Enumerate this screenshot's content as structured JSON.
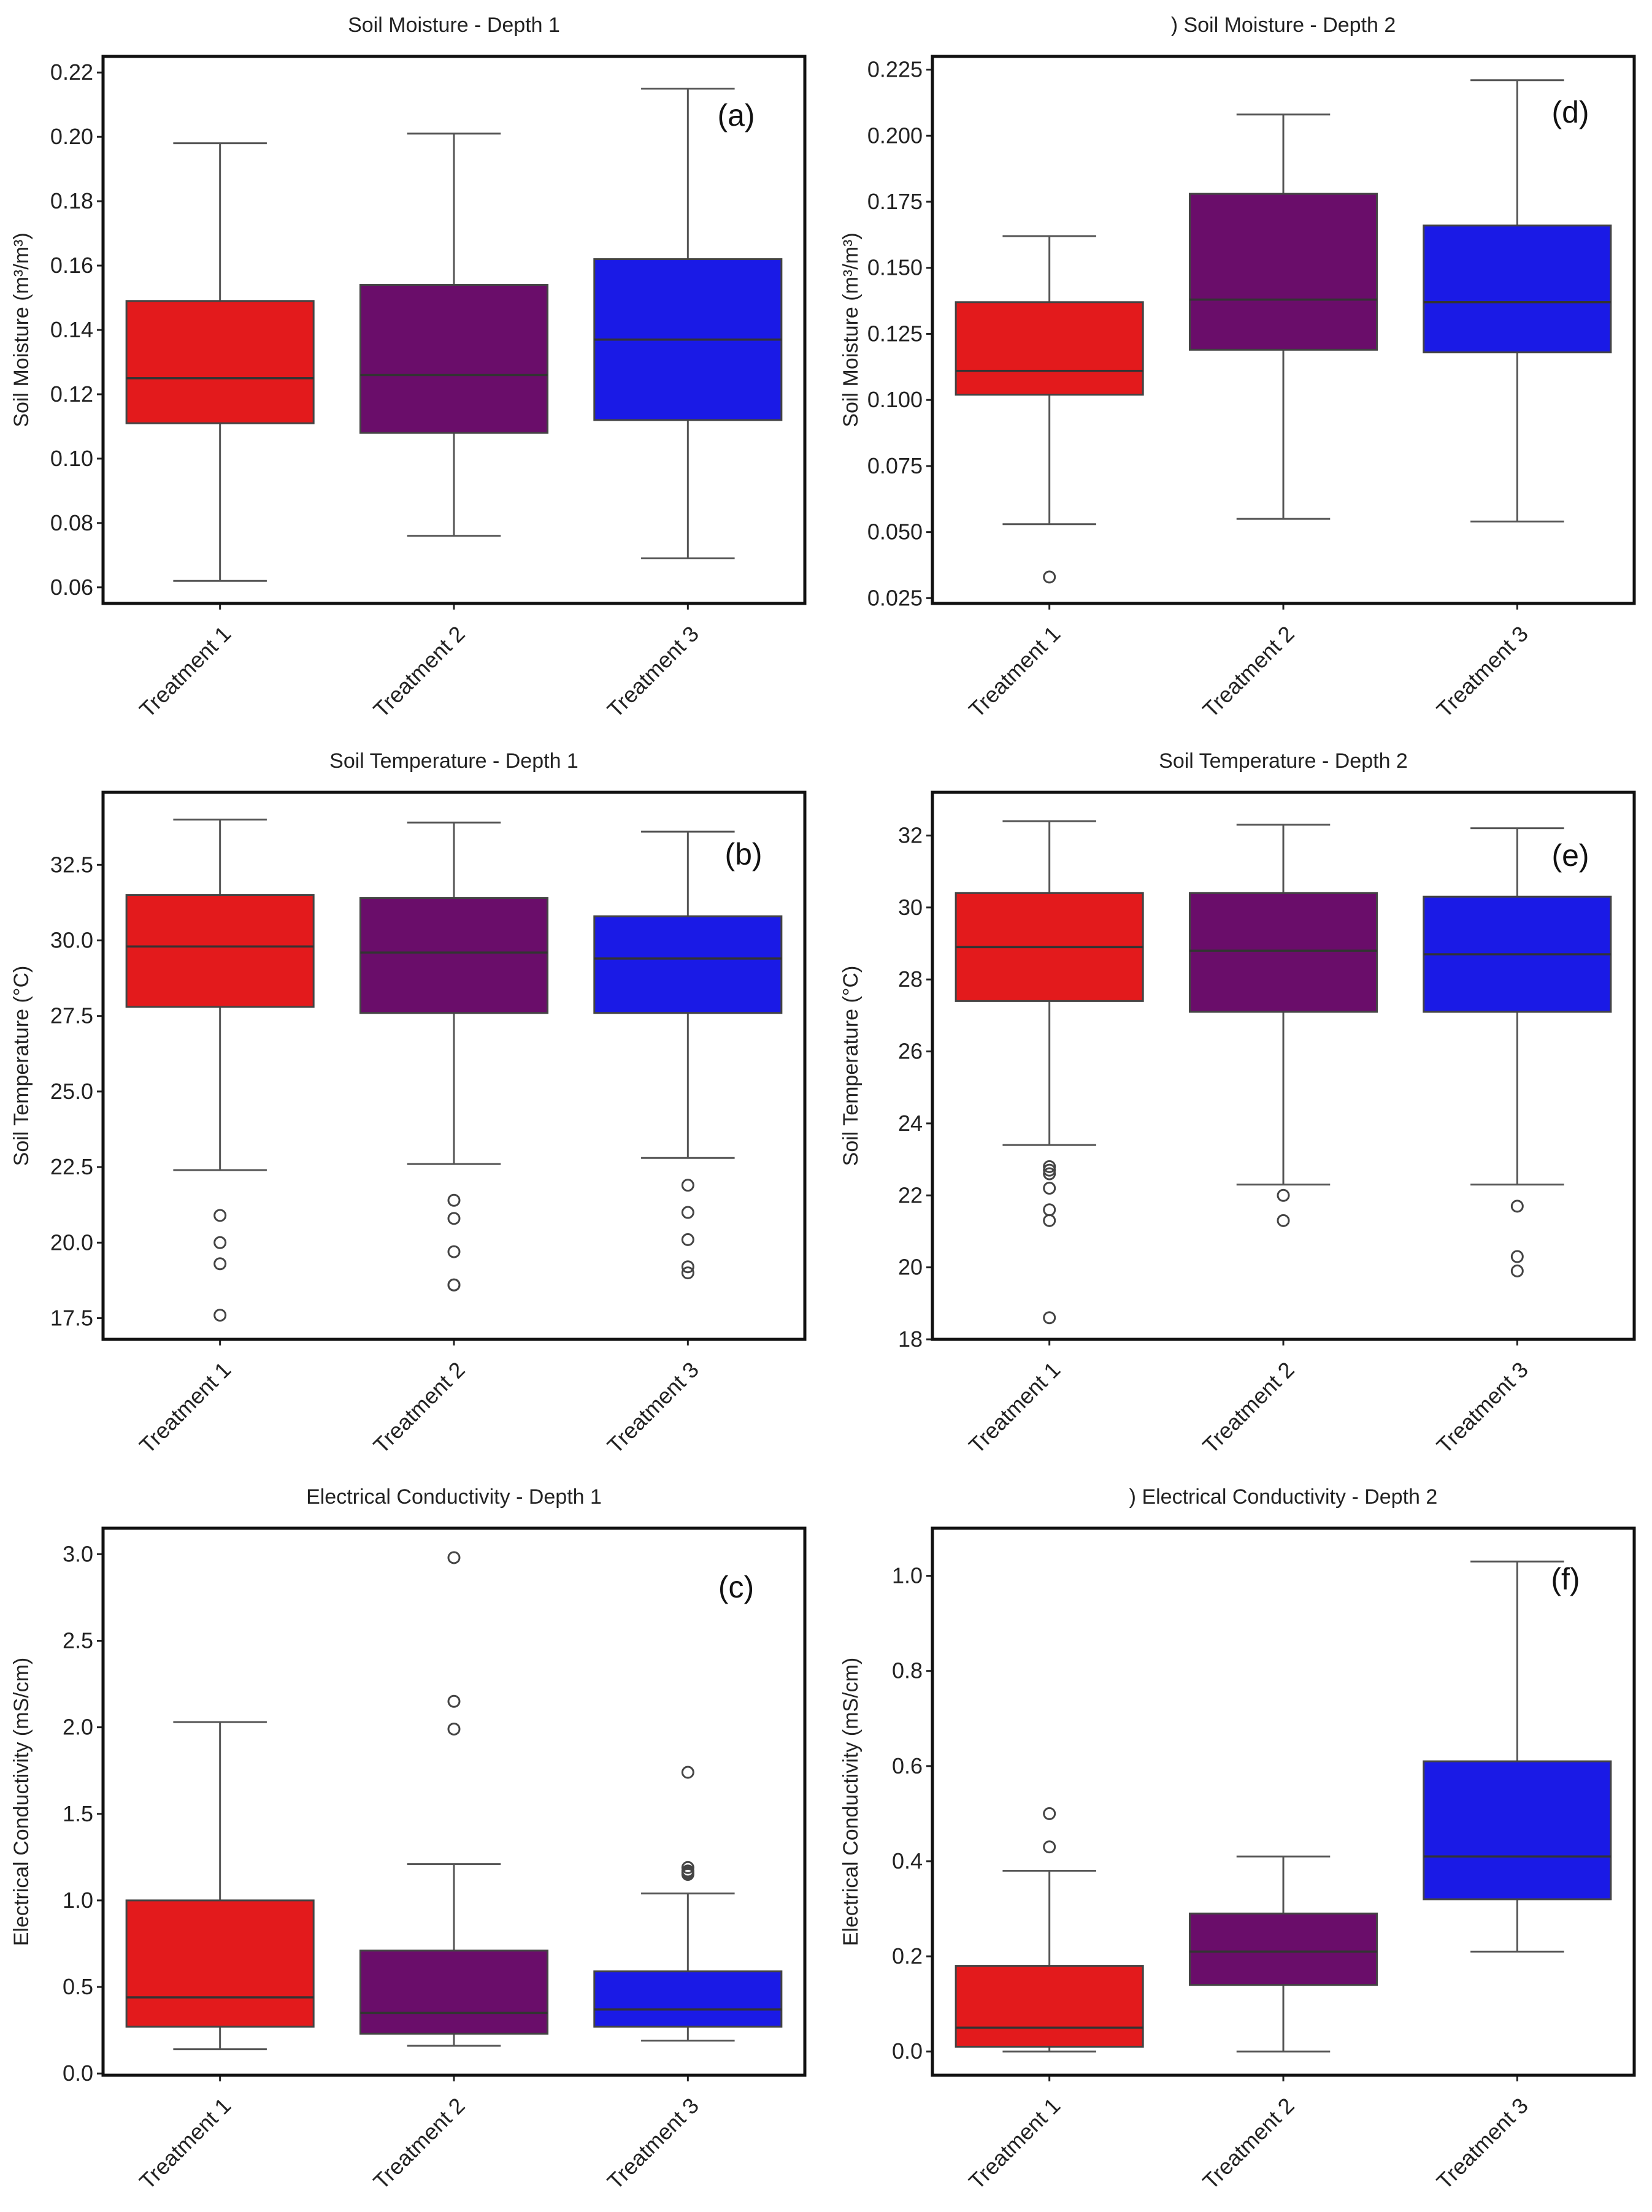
{
  "chart_data": [
    {
      "type": "box",
      "panel": "a",
      "title": "Soil Moisture - Depth 1",
      "ylabel": "Soil Moisture (m³/m³)",
      "ylim": [
        0.055,
        0.225
      ],
      "yticks": [
        0.06,
        0.08,
        0.1,
        0.12,
        0.14,
        0.16,
        0.18,
        0.2,
        0.22
      ],
      "ytick_labels": [
        "0.06",
        "0.08",
        "0.10",
        "0.12",
        "0.14",
        "0.16",
        "0.18",
        "0.20",
        "0.22"
      ],
      "categories": [
        "Treatment 1",
        "Treatment 2",
        "Treatment 3"
      ],
      "colors": [
        "#e31a1c",
        "#6a0d6a",
        "#1a1ae6"
      ],
      "boxes": [
        {
          "whislo": 0.062,
          "q1": 0.111,
          "med": 0.125,
          "q3": 0.149,
          "whishi": 0.198,
          "fliers": []
        },
        {
          "whislo": 0.076,
          "q1": 0.108,
          "med": 0.126,
          "q3": 0.154,
          "whishi": 0.201,
          "fliers": []
        },
        {
          "whislo": 0.069,
          "q1": 0.112,
          "med": 0.137,
          "q3": 0.162,
          "whishi": 0.215,
          "fliers": []
        }
      ]
    },
    {
      "type": "box",
      "panel": "d",
      "title": ") Soil Moisture - Depth 2",
      "ylabel": "Soil Moisture (m³/m³)",
      "ylim": [
        0.023,
        0.23
      ],
      "yticks": [
        0.025,
        0.05,
        0.075,
        0.1,
        0.125,
        0.15,
        0.175,
        0.2,
        0.225
      ],
      "ytick_labels": [
        "0.025",
        "0.050",
        "0.075",
        "0.100",
        "0.125",
        "0.150",
        "0.175",
        "0.200",
        "0.225"
      ],
      "categories": [
        "Treatment 1",
        "Treatment 2",
        "Treatment 3"
      ],
      "colors": [
        "#e31a1c",
        "#6a0d6a",
        "#1a1ae6"
      ],
      "boxes": [
        {
          "whislo": 0.053,
          "q1": 0.102,
          "med": 0.111,
          "q3": 0.137,
          "whishi": 0.162,
          "fliers": [
            0.033
          ]
        },
        {
          "whislo": 0.055,
          "q1": 0.119,
          "med": 0.138,
          "q3": 0.178,
          "whishi": 0.208,
          "fliers": []
        },
        {
          "whislo": 0.054,
          "q1": 0.118,
          "med": 0.137,
          "q3": 0.166,
          "whishi": 0.221,
          "fliers": []
        }
      ]
    },
    {
      "type": "box",
      "panel": "b",
      "title": "Soil Temperature - Depth 1",
      "ylabel": "Soil Temperature (°C)",
      "ylim": [
        16.8,
        34.9
      ],
      "yticks": [
        17.5,
        20.0,
        22.5,
        25.0,
        27.5,
        30.0,
        32.5
      ],
      "ytick_labels": [
        "17.5",
        "20.0",
        "22.5",
        "25.0",
        "27.5",
        "30.0",
        "32.5"
      ],
      "categories": [
        "Treatment 1",
        "Treatment 2",
        "Treatment 3"
      ],
      "colors": [
        "#e31a1c",
        "#6a0d6a",
        "#1a1ae6"
      ],
      "boxes": [
        {
          "whislo": 22.4,
          "q1": 27.8,
          "med": 29.8,
          "q3": 31.5,
          "whishi": 34.0,
          "fliers": [
            20.9,
            20.0,
            19.3,
            17.6
          ]
        },
        {
          "whislo": 22.6,
          "q1": 27.6,
          "med": 29.6,
          "q3": 31.4,
          "whishi": 33.9,
          "fliers": [
            21.4,
            20.8,
            19.7,
            18.6,
            18.6
          ]
        },
        {
          "whislo": 22.8,
          "q1": 27.6,
          "med": 29.4,
          "q3": 30.8,
          "whishi": 33.6,
          "fliers": [
            21.9,
            21.0,
            20.1,
            19.2,
            19.0
          ]
        }
      ]
    },
    {
      "type": "box",
      "panel": "e",
      "title": "Soil Temperature - Depth 2",
      "ylabel": "Soil Temperature (°C)",
      "ylim": [
        18.0,
        33.2
      ],
      "yticks": [
        18,
        20,
        22,
        24,
        26,
        28,
        30,
        32
      ],
      "ytick_labels": [
        "18",
        "20",
        "22",
        "24",
        "26",
        "28",
        "30",
        "32"
      ],
      "categories": [
        "Treatment 1",
        "Treatment 2",
        "Treatment 3"
      ],
      "colors": [
        "#e31a1c",
        "#6a0d6a",
        "#1a1ae6"
      ],
      "boxes": [
        {
          "whislo": 23.4,
          "q1": 27.4,
          "med": 28.9,
          "q3": 30.4,
          "whishi": 32.4,
          "fliers": [
            22.8,
            22.7,
            22.6,
            22.2,
            21.6,
            21.3,
            18.6
          ]
        },
        {
          "whislo": 22.3,
          "q1": 27.1,
          "med": 28.8,
          "q3": 30.4,
          "whishi": 32.3,
          "fliers": [
            22.0,
            21.3
          ]
        },
        {
          "whislo": 22.3,
          "q1": 27.1,
          "med": 28.7,
          "q3": 30.3,
          "whishi": 32.2,
          "fliers": [
            21.7,
            20.3,
            19.9
          ]
        }
      ]
    },
    {
      "type": "box",
      "panel": "c",
      "title": "Electrical Conductivity - Depth 1",
      "ylabel": "Electrical Conductivity (mS/cm)",
      "ylim": [
        -0.01,
        3.15
      ],
      "yticks": [
        0.0,
        0.5,
        1.0,
        1.5,
        2.0,
        2.5,
        3.0
      ],
      "ytick_labels": [
        "0.0",
        "0.5",
        "1.0",
        "1.5",
        "2.0",
        "2.5",
        "3.0"
      ],
      "categories": [
        "Treatment 1",
        "Treatment 2",
        "Treatment 3"
      ],
      "colors": [
        "#e31a1c",
        "#6a0d6a",
        "#1a1ae6"
      ],
      "boxes": [
        {
          "whislo": 0.14,
          "q1": 0.27,
          "med": 0.44,
          "q3": 1.0,
          "whishi": 2.03,
          "fliers": []
        },
        {
          "whislo": 0.16,
          "q1": 0.23,
          "med": 0.35,
          "q3": 0.71,
          "whishi": 1.21,
          "fliers": [
            2.98,
            2.15,
            1.99
          ]
        },
        {
          "whislo": 0.19,
          "q1": 0.27,
          "med": 0.37,
          "q3": 0.59,
          "whishi": 1.04,
          "fliers": [
            1.74,
            1.19,
            1.17,
            1.16,
            1.15
          ]
        }
      ]
    },
    {
      "type": "box",
      "panel": "f",
      "title": ") Electrical Conductivity - Depth 2",
      "ylabel": "Electrical Conductivity (mS/cm)",
      "ylim": [
        -0.05,
        1.1
      ],
      "yticks": [
        0.0,
        0.2,
        0.4,
        0.6,
        0.8,
        1.0
      ],
      "ytick_labels": [
        "0.0",
        "0.2",
        "0.4",
        "0.6",
        "0.8",
        "1.0"
      ],
      "categories": [
        "Treatment 1",
        "Treatment 2",
        "Treatment 3"
      ],
      "colors": [
        "#e31a1c",
        "#6a0d6a",
        "#1a1ae6"
      ],
      "boxes": [
        {
          "whislo": 0.0,
          "q1": 0.01,
          "med": 0.05,
          "q3": 0.18,
          "whishi": 0.38,
          "fliers": [
            0.5,
            0.43
          ]
        },
        {
          "whislo": 0.0,
          "q1": 0.14,
          "med": 0.21,
          "q3": 0.29,
          "whishi": 0.41,
          "fliers": []
        },
        {
          "whislo": 0.21,
          "q1": 0.32,
          "med": 0.41,
          "q3": 0.61,
          "whishi": 1.03,
          "fliers": []
        }
      ]
    }
  ]
}
